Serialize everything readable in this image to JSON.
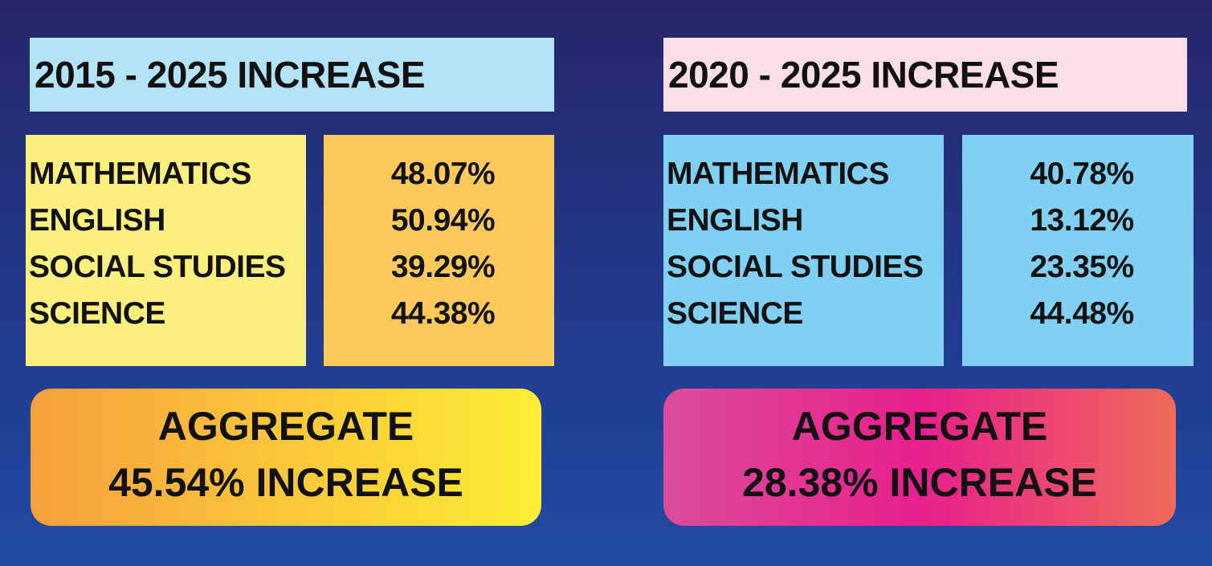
{
  "panels": [
    {
      "title": "2015 - 2025 INCREASE",
      "subjects": [
        "MATHEMATICS",
        "ENGLISH",
        "SOCIAL STUDIES",
        "SCIENCE"
      ],
      "values": [
        "48.07%",
        "50.94%",
        "39.29%",
        "44.38%"
      ],
      "aggregate": {
        "label": "AGGREGATE",
        "value": "45.54% INCREASE"
      }
    },
    {
      "title": "2020 - 2025 INCREASE",
      "subjects": [
        "MATHEMATICS",
        "ENGLISH",
        "SOCIAL STUDIES",
        "SCIENCE"
      ],
      "values": [
        "40.78%",
        "13.12%",
        "23.35%",
        "44.48%"
      ],
      "aggregate": {
        "label": "AGGREGATE",
        "value": "28.38% INCREASE"
      }
    }
  ]
}
